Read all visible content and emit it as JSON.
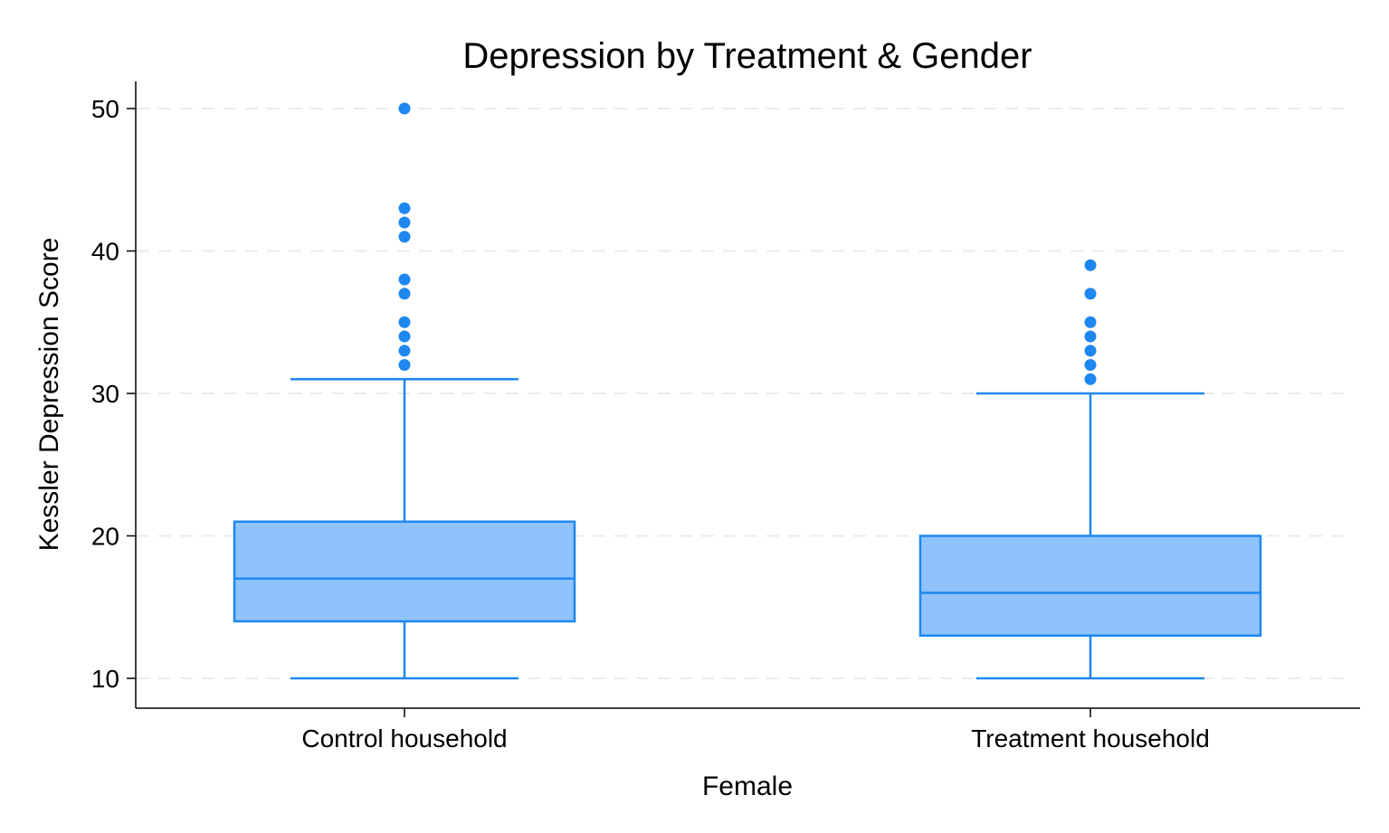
{
  "chart_data": {
    "type": "box",
    "title": "Depression by Treatment & Gender",
    "xlabel": "Female",
    "ylabel": "Kessler Depression Score",
    "ylim": [
      8,
      52
    ],
    "yticks": [
      10,
      20,
      30,
      40,
      50
    ],
    "ytick_labels": [
      "10",
      "20",
      "30",
      "40",
      "50"
    ],
    "grid": "horizontal dashed",
    "legend": "none",
    "colors": {
      "box_fill": "#90c2fb",
      "box_stroke": "#1e87f0",
      "outlier": "#1e87f0",
      "grid": "#ebebeb"
    },
    "categories": [
      "Control household",
      "Treatment household"
    ],
    "boxes": [
      {
        "category": "Control household",
        "whisker_low": 10,
        "q1": 14,
        "median": 17,
        "q3": 21,
        "whisker_high": 31,
        "outliers": [
          32,
          33,
          34,
          35,
          37,
          38,
          41,
          42,
          43,
          50
        ]
      },
      {
        "category": "Treatment household",
        "whisker_low": 10,
        "q1": 13,
        "median": 16,
        "q3": 20,
        "whisker_high": 30,
        "outliers": [
          31,
          32,
          33,
          34,
          35,
          37,
          39
        ]
      }
    ]
  }
}
